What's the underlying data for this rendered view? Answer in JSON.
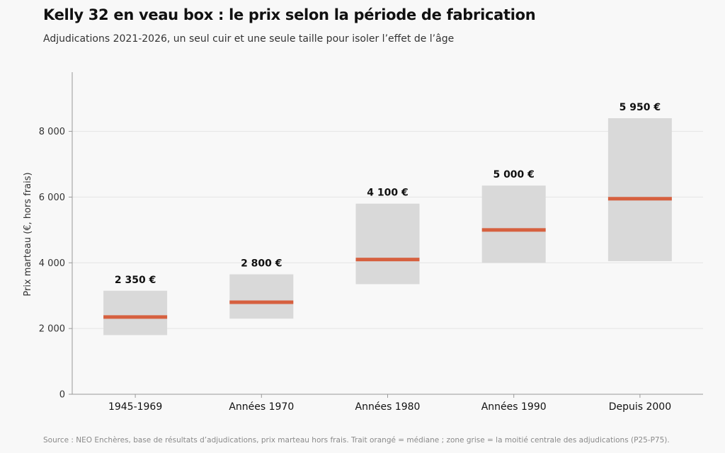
{
  "title": "Kelly 32 en veau box : le prix selon la période de fabrication",
  "subtitle": "Adjudications 2021-2026, un seul cuir et une seule taille pour isoler l’effet de l’âge",
  "footer": "Source : NEO Enchères, base de résultats d’adjudications, prix marteau hors frais. Trait orangé = médiane ; zone grise = la moitié centrale des adjudications (P25-P75).",
  "colors": {
    "band": "#d9d9d9",
    "median": "#d6603f",
    "grid": "#e4e4e4",
    "axis": "#999999"
  },
  "chart_data": {
    "type": "bar",
    "ylabel": "Prix marteau (€, hors frais)",
    "ylim": [
      0,
      9800
    ],
    "yticks": [
      0,
      2000,
      4000,
      6000,
      8000
    ],
    "ytick_labels": [
      "0",
      "2 000",
      "4 000",
      "6 000",
      "8 000"
    ],
    "grid": true,
    "categories": [
      "1945-1969",
      "Années 1970",
      "Années 1980",
      "Années 1990",
      "Depuis 2000"
    ],
    "p25": [
      1800,
      2300,
      3350,
      4000,
      4050
    ],
    "p75": [
      3150,
      3650,
      5800,
      6350,
      8400
    ],
    "median": [
      2350,
      2800,
      4100,
      5000,
      5950
    ],
    "labels": [
      "2 350 €",
      "2 800 €",
      "4 100 €",
      "5 000 €",
      "5 950 €"
    ]
  }
}
